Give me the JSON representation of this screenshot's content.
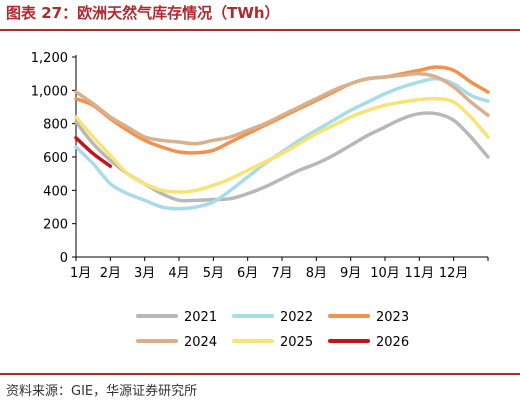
{
  "header": {
    "title": "图表 27：欧洲天然气库存情况（TWh）"
  },
  "footer": {
    "source": "资料来源：GIE，华源证券研究所"
  },
  "colors": {
    "accent": "#b3282d",
    "rule": "#b3282d"
  },
  "chart_data": {
    "type": "line",
    "title": "图表 27：欧洲天然气库存情况（TWh）",
    "xlabel": "",
    "ylabel": "",
    "x": [
      0,
      0.5,
      1,
      1.5,
      2,
      2.5,
      3,
      3.5,
      4,
      4.5,
      5,
      5.5,
      6,
      6.5,
      7,
      7.5,
      8,
      8.5,
      9,
      9.5,
      10,
      10.5,
      11,
      11.5,
      12
    ],
    "x_tick_labels": [
      "1月",
      "2月",
      "3月",
      "4月",
      "5月",
      "6月",
      "7月",
      "8月",
      "9月",
      "10月",
      "11月",
      "12月"
    ],
    "xlim": [
      0,
      12
    ],
    "ylim": [
      0,
      1200
    ],
    "y_ticks": [
      0,
      200,
      400,
      600,
      800,
      1000,
      1200
    ],
    "y_tick_labels": [
      "0",
      "200",
      "400",
      "600",
      "800",
      "1,000",
      "1,200"
    ],
    "grid": false,
    "legend": "bottom",
    "series": [
      {
        "name": "2021",
        "color": "#b8b8b8",
        "values": [
          810,
          680,
          580,
          500,
          440,
          380,
          340,
          340,
          345,
          350,
          380,
          420,
          470,
          520,
          560,
          610,
          670,
          730,
          780,
          830,
          860,
          860,
          820,
          720,
          600
        ]
      },
      {
        "name": "2022",
        "color": "#a8dcea",
        "values": [
          660,
          560,
          440,
          380,
          340,
          300,
          290,
          300,
          330,
          400,
          480,
          560,
          630,
          700,
          760,
          820,
          880,
          930,
          980,
          1020,
          1050,
          1070,
          1040,
          970,
          935
        ]
      },
      {
        "name": "2023",
        "color": "#f3914c",
        "values": [
          950,
          910,
          830,
          760,
          700,
          660,
          630,
          625,
          640,
          690,
          740,
          790,
          840,
          890,
          940,
          990,
          1040,
          1070,
          1080,
          1100,
          1120,
          1140,
          1120,
          1050,
          990
        ]
      },
      {
        "name": "2024",
        "color": "#d9b08c",
        "values": [
          990,
          920,
          840,
          780,
          720,
          700,
          690,
          680,
          700,
          720,
          760,
          800,
          850,
          900,
          950,
          1000,
          1040,
          1070,
          1080,
          1090,
          1100,
          1080,
          1020,
          930,
          850
        ]
      },
      {
        "name": "2025",
        "color": "#f8e374",
        "values": [
          840,
          720,
          610,
          500,
          440,
          400,
          390,
          400,
          430,
          470,
          520,
          570,
          620,
          680,
          740,
          790,
          840,
          880,
          910,
          930,
          945,
          950,
          930,
          840,
          720
        ]
      },
      {
        "name": "2026",
        "color": "#c0161b",
        "values": [
          715,
          620,
          545,
          null,
          null,
          null,
          null,
          null,
          null,
          null,
          null,
          null,
          null,
          null,
          null,
          null,
          null,
          null,
          null,
          null,
          null,
          null,
          null,
          null,
          null
        ]
      }
    ]
  }
}
